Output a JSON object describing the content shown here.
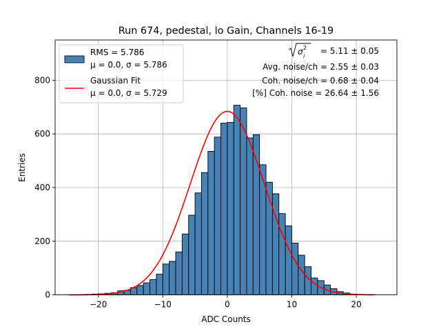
{
  "chart_data": {
    "type": "bar",
    "title": "Run 674, pedestal, lo Gain, Channels 16-19",
    "xlabel": "ADC Counts",
    "ylabel": "Entries",
    "xlim": [
      -26.7,
      26.3
    ],
    "ylim": [
      0,
      950
    ],
    "xticks": [
      -20,
      -10,
      0,
      10,
      20
    ],
    "yticks": [
      0,
      200,
      400,
      600,
      800
    ],
    "xtick_labels": [
      "−20",
      "−10",
      "0",
      "10",
      "20"
    ],
    "ytick_labels": [
      "0",
      "200",
      "400",
      "600",
      "800"
    ],
    "grid": true,
    "legend_position": "top-left",
    "histogram": {
      "name": "RMS = 5.786",
      "label_line2": "μ = 0.0, σ = 5.786",
      "bin_width": 1,
      "bin_starts": [
        -24,
        -23,
        -22,
        -21,
        -20,
        -19,
        -18,
        -17,
        -16,
        -15,
        -14,
        -13,
        -12,
        -11,
        -10,
        -9,
        -8,
        -7,
        -6,
        -5,
        -4,
        -3,
        -2,
        -1,
        0,
        1,
        2,
        3,
        4,
        5,
        6,
        7,
        8,
        9,
        10,
        11,
        12,
        13,
        14,
        15,
        16,
        17,
        18,
        19,
        20,
        21,
        22
      ],
      "counts": [
        0,
        1,
        2,
        3,
        4,
        6,
        8,
        15,
        17,
        27,
        35,
        45,
        57,
        77,
        115,
        125,
        160,
        227,
        297,
        380,
        456,
        535,
        588,
        640,
        643,
        707,
        697,
        585,
        597,
        485,
        420,
        377,
        303,
        257,
        193,
        148,
        105,
        63,
        53,
        37,
        23,
        12,
        7,
        3,
        1,
        0,
        1
      ],
      "color": "#4682b4",
      "edge_color": "#000000"
    },
    "gaussian_fit": {
      "name": "Gaussian Fit",
      "label_line2": "μ = 0.0, σ = 5.729",
      "mu": 0.0,
      "sigma": 5.729,
      "amplitude": 684,
      "x_range": [
        -24.5,
        22.5
      ],
      "color": "#ff0000"
    },
    "annotations": [
      {
        "prefix": "",
        "sqrt": true,
        "text": " = 5.11 ± 0.05"
      },
      {
        "prefix": "Avg. noise/ch = 2.55 ± 0.03",
        "sqrt": false,
        "text": ""
      },
      {
        "prefix": "Coh. noise/ch = 0.68 ± 0.04",
        "sqrt": false,
        "text": ""
      },
      {
        "prefix": "[%] Coh. noise = 26.64 ± 1.56",
        "sqrt": false,
        "text": ""
      }
    ]
  }
}
